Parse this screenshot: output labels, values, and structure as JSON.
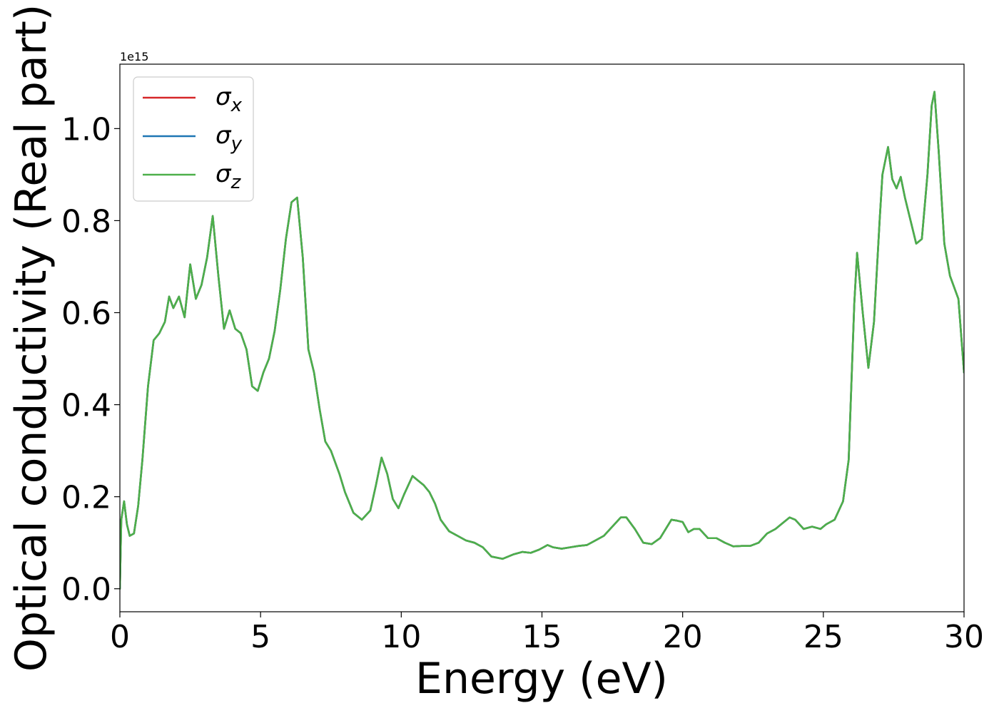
{
  "chart_data": {
    "type": "line",
    "title": "",
    "xlabel": "Energy (eV)",
    "ylabel": "Optical conductivity (Real part)",
    "offset_text": "1e15",
    "xlim": [
      0,
      30
    ],
    "ylim": [
      -0.05,
      1.14
    ],
    "xticks": [
      0,
      5,
      10,
      15,
      20,
      25,
      30
    ],
    "xtick_labels": [
      "0",
      "5",
      "10",
      "15",
      "20",
      "25",
      "30"
    ],
    "yticks": [
      0.0,
      0.2,
      0.4,
      0.6,
      0.8,
      1.0
    ],
    "ytick_labels": [
      "0.0",
      "0.2",
      "0.4",
      "0.6",
      "0.8",
      "1.0"
    ],
    "grid": false,
    "legend_position": "top-left",
    "x": [
      0.0,
      0.05,
      0.15,
      0.25,
      0.35,
      0.5,
      0.65,
      0.8,
      1.0,
      1.2,
      1.4,
      1.6,
      1.75,
      1.9,
      2.1,
      2.3,
      2.5,
      2.7,
      2.9,
      3.1,
      3.3,
      3.5,
      3.7,
      3.9,
      4.1,
      4.3,
      4.5,
      4.7,
      4.9,
      5.1,
      5.3,
      5.5,
      5.7,
      5.9,
      6.1,
      6.3,
      6.5,
      6.7,
      6.9,
      7.1,
      7.3,
      7.5,
      7.8,
      8.0,
      8.3,
      8.6,
      8.9,
      9.1,
      9.3,
      9.5,
      9.7,
      9.9,
      10.1,
      10.4,
      10.6,
      10.8,
      11.0,
      11.2,
      11.4,
      11.7,
      12.0,
      12.3,
      12.6,
      12.9,
      13.2,
      13.6,
      14.0,
      14.3,
      14.6,
      14.9,
      15.2,
      15.4,
      15.7,
      16.0,
      16.3,
      16.6,
      16.9,
      17.2,
      17.5,
      17.8,
      18.0,
      18.3,
      18.6,
      18.9,
      19.2,
      19.4,
      19.6,
      19.8,
      20.0,
      20.2,
      20.4,
      20.6,
      20.9,
      21.2,
      21.5,
      21.8,
      22.1,
      22.4,
      22.7,
      23.0,
      23.3,
      23.5,
      23.8,
      24.0,
      24.3,
      24.6,
      24.9,
      25.1,
      25.4,
      25.7,
      25.9,
      26.1,
      26.2,
      26.4,
      26.6,
      26.8,
      27.0,
      27.1,
      27.3,
      27.45,
      27.6,
      27.75,
      27.9,
      28.1,
      28.3,
      28.5,
      28.7,
      28.85,
      28.95,
      29.1,
      29.3,
      29.5,
      29.8,
      30.0
    ],
    "series": [
      {
        "name": "σx",
        "color": "#d62728",
        "values": [
          0.0,
          0.15,
          0.19,
          0.14,
          0.115,
          0.12,
          0.18,
          0.28,
          0.44,
          0.54,
          0.555,
          0.58,
          0.635,
          0.61,
          0.635,
          0.59,
          0.705,
          0.63,
          0.66,
          0.72,
          0.81,
          0.68,
          0.565,
          0.605,
          0.565,
          0.555,
          0.52,
          0.44,
          0.43,
          0.47,
          0.5,
          0.56,
          0.65,
          0.76,
          0.84,
          0.85,
          0.72,
          0.52,
          0.47,
          0.39,
          0.32,
          0.3,
          0.25,
          0.21,
          0.165,
          0.15,
          0.17,
          0.225,
          0.285,
          0.25,
          0.195,
          0.175,
          0.205,
          0.245,
          0.235,
          0.225,
          0.21,
          0.185,
          0.15,
          0.125,
          0.115,
          0.105,
          0.1,
          0.09,
          0.07,
          0.065,
          0.075,
          0.08,
          0.078,
          0.085,
          0.095,
          0.09,
          0.087,
          0.09,
          0.093,
          0.095,
          0.105,
          0.115,
          0.135,
          0.155,
          0.155,
          0.13,
          0.1,
          0.097,
          0.11,
          0.13,
          0.15,
          0.148,
          0.145,
          0.123,
          0.13,
          0.13,
          0.11,
          0.11,
          0.1,
          0.092,
          0.093,
          0.093,
          0.1,
          0.12,
          0.13,
          0.14,
          0.155,
          0.15,
          0.13,
          0.135,
          0.13,
          0.14,
          0.15,
          0.19,
          0.28,
          0.62,
          0.73,
          0.6,
          0.48,
          0.58,
          0.8,
          0.9,
          0.96,
          0.89,
          0.87,
          0.895,
          0.85,
          0.8,
          0.75,
          0.76,
          0.9,
          1.05,
          1.08,
          0.95,
          0.75,
          0.68,
          0.63,
          0.47
        ]
      },
      {
        "name": "σy",
        "color": "#1f77b4",
        "values": [
          0.0,
          0.15,
          0.19,
          0.14,
          0.115,
          0.12,
          0.18,
          0.28,
          0.44,
          0.54,
          0.555,
          0.58,
          0.635,
          0.61,
          0.635,
          0.59,
          0.705,
          0.63,
          0.66,
          0.72,
          0.81,
          0.68,
          0.565,
          0.605,
          0.565,
          0.555,
          0.52,
          0.44,
          0.43,
          0.47,
          0.5,
          0.56,
          0.65,
          0.76,
          0.84,
          0.85,
          0.72,
          0.52,
          0.47,
          0.39,
          0.32,
          0.3,
          0.25,
          0.21,
          0.165,
          0.15,
          0.17,
          0.225,
          0.285,
          0.25,
          0.195,
          0.175,
          0.205,
          0.245,
          0.235,
          0.225,
          0.21,
          0.185,
          0.15,
          0.125,
          0.115,
          0.105,
          0.1,
          0.09,
          0.07,
          0.065,
          0.075,
          0.08,
          0.078,
          0.085,
          0.095,
          0.09,
          0.087,
          0.09,
          0.093,
          0.095,
          0.105,
          0.115,
          0.135,
          0.155,
          0.155,
          0.13,
          0.1,
          0.097,
          0.11,
          0.13,
          0.15,
          0.148,
          0.145,
          0.123,
          0.13,
          0.13,
          0.11,
          0.11,
          0.1,
          0.092,
          0.093,
          0.093,
          0.1,
          0.12,
          0.13,
          0.14,
          0.155,
          0.15,
          0.13,
          0.135,
          0.13,
          0.14,
          0.15,
          0.19,
          0.28,
          0.62,
          0.73,
          0.6,
          0.48,
          0.58,
          0.8,
          0.9,
          0.96,
          0.89,
          0.87,
          0.895,
          0.85,
          0.8,
          0.75,
          0.76,
          0.9,
          1.05,
          1.08,
          0.95,
          0.75,
          0.68,
          0.63,
          0.47
        ]
      },
      {
        "name": "σz",
        "color": "#4daf4a",
        "values": [
          0.0,
          0.15,
          0.19,
          0.14,
          0.115,
          0.12,
          0.18,
          0.28,
          0.44,
          0.54,
          0.555,
          0.58,
          0.635,
          0.61,
          0.635,
          0.59,
          0.705,
          0.63,
          0.66,
          0.72,
          0.81,
          0.68,
          0.565,
          0.605,
          0.565,
          0.555,
          0.52,
          0.44,
          0.43,
          0.47,
          0.5,
          0.56,
          0.65,
          0.76,
          0.84,
          0.85,
          0.72,
          0.52,
          0.47,
          0.39,
          0.32,
          0.3,
          0.25,
          0.21,
          0.165,
          0.15,
          0.17,
          0.225,
          0.285,
          0.25,
          0.195,
          0.175,
          0.205,
          0.245,
          0.235,
          0.225,
          0.21,
          0.185,
          0.15,
          0.125,
          0.115,
          0.105,
          0.1,
          0.09,
          0.07,
          0.065,
          0.075,
          0.08,
          0.078,
          0.085,
          0.095,
          0.09,
          0.087,
          0.09,
          0.093,
          0.095,
          0.105,
          0.115,
          0.135,
          0.155,
          0.155,
          0.13,
          0.1,
          0.097,
          0.11,
          0.13,
          0.15,
          0.148,
          0.145,
          0.123,
          0.13,
          0.13,
          0.11,
          0.11,
          0.1,
          0.092,
          0.093,
          0.093,
          0.1,
          0.12,
          0.13,
          0.14,
          0.155,
          0.15,
          0.13,
          0.135,
          0.13,
          0.14,
          0.15,
          0.19,
          0.28,
          0.62,
          0.73,
          0.6,
          0.48,
          0.58,
          0.8,
          0.9,
          0.96,
          0.89,
          0.87,
          0.895,
          0.85,
          0.8,
          0.75,
          0.76,
          0.9,
          1.05,
          1.08,
          0.95,
          0.75,
          0.68,
          0.63,
          0.47
        ]
      }
    ]
  }
}
